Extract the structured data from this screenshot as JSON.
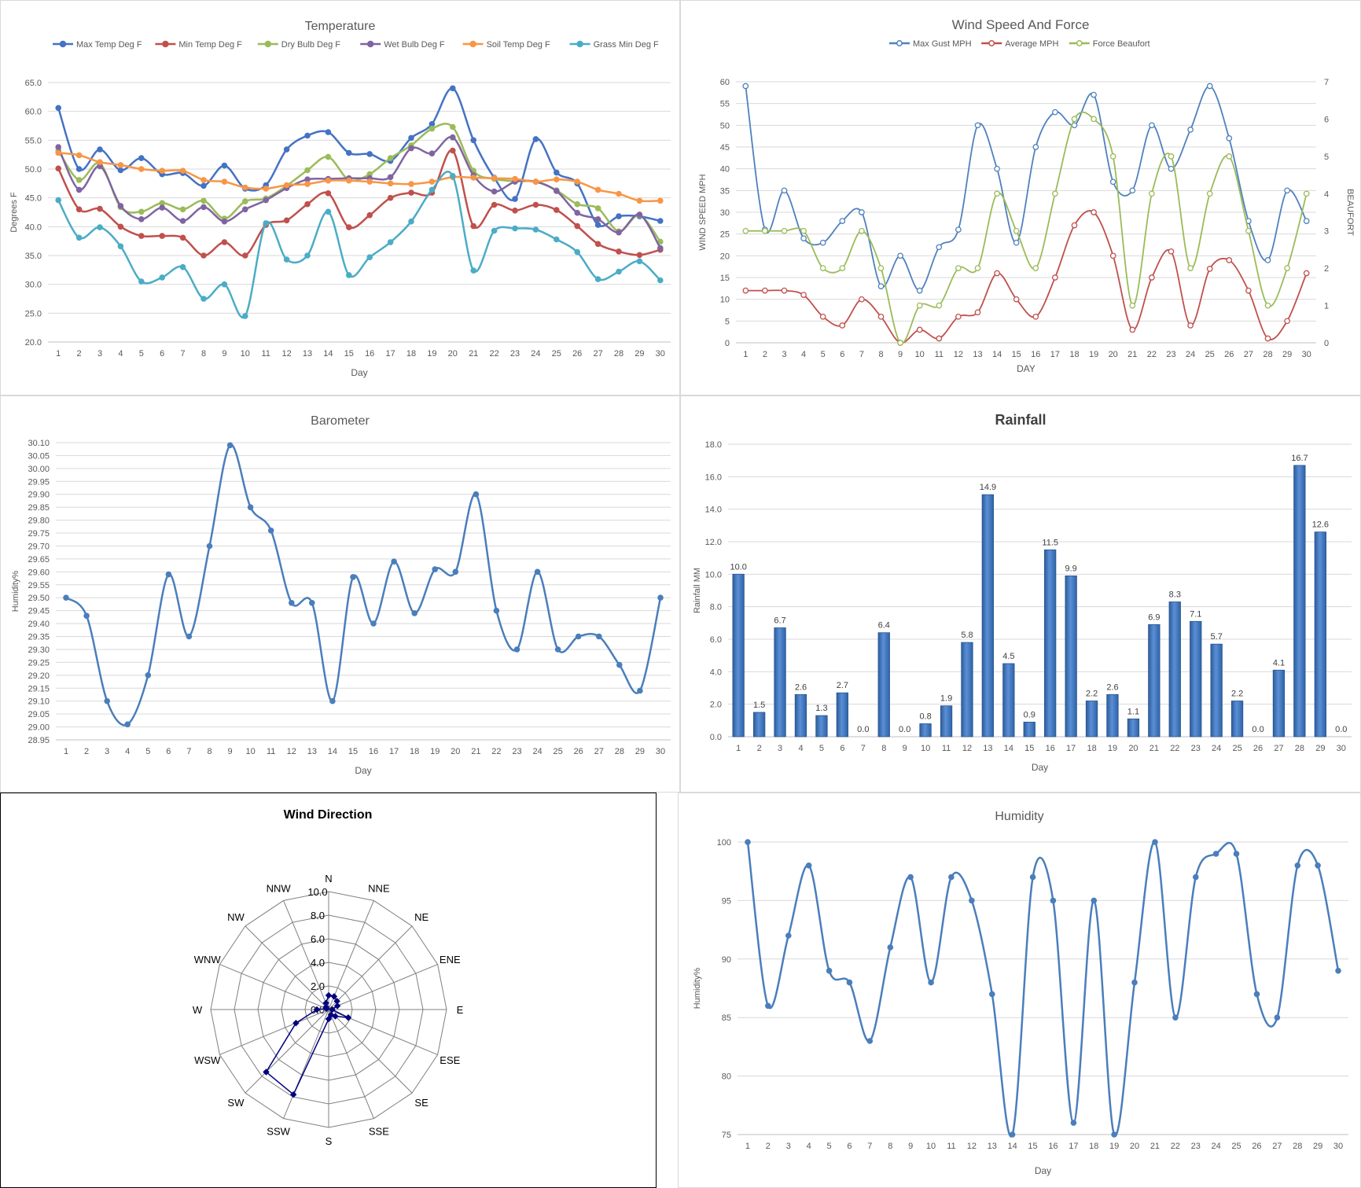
{
  "days_label": "Day",
  "chart_data": [
    {
      "id": "temperature",
      "type": "line",
      "title": "Temperature",
      "xlabel": "Day",
      "ylabel": "Degrees F",
      "x": [
        1,
        2,
        3,
        4,
        5,
        6,
        7,
        8,
        9,
        10,
        11,
        12,
        13,
        14,
        15,
        16,
        17,
        18,
        19,
        20,
        21,
        22,
        23,
        24,
        25,
        26,
        27,
        28,
        29,
        30
      ],
      "ylim": [
        20.0,
        65.0
      ],
      "yticks": [
        "20.0",
        "25.0",
        "30.0",
        "35.0",
        "40.0",
        "45.0",
        "50.0",
        "55.0",
        "60.0",
        "65.0"
      ],
      "grid": true,
      "legend": "top",
      "series": [
        {
          "name": "Max Temp Deg F",
          "color": "#4472c4",
          "values": [
            60.6,
            50.0,
            53.4,
            49.8,
            51.9,
            49.1,
            49.3,
            47.1,
            50.6,
            46.6,
            47.2,
            53.4,
            55.8,
            56.4,
            52.8,
            52.6,
            51.4,
            55.4,
            57.8,
            64.0,
            55.0,
            48.5,
            44.8,
            55.2,
            49.4,
            47.5,
            40.3,
            41.8,
            41.8,
            41.0
          ]
        },
        {
          "name": "Min Temp Deg F",
          "color": "#c0504d",
          "values": [
            50.1,
            43.0,
            43.1,
            40.0,
            38.4,
            38.4,
            38.1,
            35.0,
            37.3,
            35.0,
            40.3,
            41.1,
            43.9,
            45.8,
            39.9,
            42.0,
            45.0,
            45.9,
            45.9,
            53.2,
            40.1,
            43.8,
            42.8,
            43.8,
            42.9,
            40.1,
            37.0,
            35.7,
            35.1,
            36.0
          ]
        },
        {
          "name": "Dry Bulb Deg F",
          "color": "#9bbb59",
          "values": [
            53.2,
            48.1,
            51.0,
            43.4,
            42.6,
            44.1,
            43.0,
            44.5,
            41.4,
            44.4,
            44.9,
            47.1,
            49.8,
            52.1,
            48.1,
            49.1,
            51.9,
            54.1,
            57.0,
            57.3,
            49.7,
            48.3,
            47.9,
            47.8,
            46.3,
            43.9,
            43.2,
            39.2,
            42.0,
            37.4
          ]
        },
        {
          "name": "Wet Bulb Deg F",
          "color": "#8064a2",
          "values": [
            53.8,
            46.4,
            50.5,
            43.6,
            41.3,
            43.3,
            41.0,
            43.4,
            40.9,
            43.0,
            44.6,
            46.7,
            48.2,
            48.3,
            48.4,
            48.4,
            48.6,
            53.6,
            52.7,
            55.5,
            48.9,
            46.1,
            47.8,
            47.8,
            46.2,
            42.4,
            41.3,
            39.0,
            42.1,
            36.3
          ]
        },
        {
          "name": "Soil Temp Deg F",
          "color": "#f79646",
          "values": [
            52.8,
            52.4,
            51.2,
            50.7,
            50.0,
            49.7,
            49.7,
            48.1,
            47.8,
            46.8,
            46.6,
            47.2,
            47.4,
            48.0,
            48.0,
            47.8,
            47.5,
            47.4,
            47.8,
            48.6,
            48.5,
            48.4,
            48.3,
            47.8,
            48.2,
            47.8,
            46.4,
            45.7,
            44.5,
            44.5
          ]
        },
        {
          "name": "Grass Min Deg F",
          "color": "#4bacc6",
          "values": [
            44.6,
            38.1,
            39.9,
            36.6,
            30.5,
            31.2,
            33.0,
            27.5,
            30.0,
            24.5,
            40.6,
            34.3,
            35.0,
            42.6,
            31.6,
            34.7,
            37.3,
            40.9,
            46.4,
            48.8,
            32.4,
            39.3,
            39.7,
            39.5,
            37.8,
            35.6,
            30.9,
            32.2,
            34.0,
            30.7
          ]
        }
      ]
    },
    {
      "id": "wind",
      "type": "line",
      "title": "Wind Speed And Force",
      "xlabel": "DAY",
      "ylabel": "WIND SPEED MPH",
      "y2label": "BEAUFORT",
      "x": [
        1,
        2,
        3,
        4,
        5,
        6,
        7,
        8,
        9,
        10,
        11,
        12,
        13,
        14,
        15,
        16,
        17,
        18,
        19,
        20,
        21,
        22,
        23,
        24,
        25,
        26,
        27,
        28,
        29,
        30
      ],
      "ylim": [
        0,
        60
      ],
      "yticks": [
        "0",
        "5",
        "10",
        "15",
        "20",
        "25",
        "30",
        "35",
        "40",
        "45",
        "50",
        "55",
        "60"
      ],
      "y2lim": [
        0,
        7
      ],
      "y2ticks": [
        "0",
        "1",
        "2",
        "3",
        "4",
        "5",
        "6",
        "7"
      ],
      "grid": true,
      "legend": "top",
      "series": [
        {
          "name": "Max Gust MPH",
          "color": "#4f81bd",
          "axis": "left",
          "values": [
            59,
            26,
            35,
            24,
            23,
            28,
            30,
            13,
            20,
            12,
            22,
            26,
            50,
            40,
            23,
            45,
            53,
            50,
            57,
            37,
            35,
            50,
            40,
            49,
            59,
            47,
            28,
            19,
            35,
            28
          ]
        },
        {
          "name": "Average MPH",
          "color": "#c0504d",
          "axis": "left",
          "values": [
            12,
            12,
            12,
            11,
            6,
            4,
            10,
            6,
            0,
            3,
            1,
            6,
            7,
            16,
            10,
            6,
            15,
            27,
            30,
            20,
            3,
            15,
            21,
            4,
            17,
            19,
            12,
            1,
            5,
            16
          ]
        },
        {
          "name": "Force Beaufort",
          "color": "#9bbb59",
          "axis": "right",
          "values": [
            3,
            3,
            3,
            3,
            2,
            2,
            3,
            2,
            0,
            1,
            1,
            2,
            2,
            4,
            3,
            2,
            4,
            6,
            6,
            5,
            1,
            4,
            5,
            2,
            4,
            5,
            3,
            1,
            2,
            4
          ]
        }
      ]
    },
    {
      "id": "barometer",
      "type": "line",
      "title": "Barometer",
      "xlabel": "Day",
      "ylabel": "Humidity%",
      "x": [
        1,
        2,
        3,
        4,
        5,
        6,
        7,
        8,
        9,
        10,
        11,
        12,
        13,
        14,
        15,
        16,
        17,
        18,
        19,
        20,
        21,
        22,
        23,
        24,
        25,
        26,
        27,
        28,
        29,
        30
      ],
      "ylim": [
        28.95,
        30.1
      ],
      "yticks": [
        "28.95",
        "29.00",
        "29.05",
        "29.10",
        "29.15",
        "29.20",
        "29.25",
        "29.30",
        "29.35",
        "29.40",
        "29.45",
        "29.50",
        "29.55",
        "29.60",
        "29.65",
        "29.70",
        "29.75",
        "29.80",
        "29.85",
        "29.90",
        "29.95",
        "30.00",
        "30.05",
        "30.10"
      ],
      "grid": true,
      "series": [
        {
          "name": "",
          "color": "#4a7ebb",
          "values": [
            29.5,
            29.43,
            29.1,
            29.01,
            29.2,
            29.59,
            29.35,
            29.7,
            30.09,
            29.85,
            29.76,
            29.48,
            29.48,
            29.1,
            29.58,
            29.4,
            29.64,
            29.44,
            29.61,
            29.6,
            29.9,
            29.45,
            29.3,
            29.6,
            29.3,
            29.35,
            29.35,
            29.24,
            29.14,
            29.5
          ]
        }
      ]
    },
    {
      "id": "rainfall",
      "type": "bar",
      "title": "Rainfall",
      "xlabel": "Day",
      "ylabel": "Rainfall MM",
      "categories": [
        "1",
        "2",
        "3",
        "4",
        "5",
        "6",
        "7",
        "8",
        "9",
        "10",
        "11",
        "12",
        "13",
        "14",
        "15",
        "16",
        "17",
        "18",
        "19",
        "20",
        "21",
        "22",
        "23",
        "24",
        "25",
        "26",
        "27",
        "28",
        "29",
        "30"
      ],
      "values": [
        10.0,
        1.5,
        6.7,
        2.6,
        1.3,
        2.7,
        0.0,
        6.4,
        0.0,
        0.8,
        1.9,
        5.8,
        14.9,
        4.5,
        0.9,
        11.5,
        9.9,
        2.2,
        2.6,
        1.1,
        6.9,
        8.3,
        7.1,
        5.7,
        2.2,
        0.0,
        4.1,
        16.7,
        12.6,
        0.0
      ],
      "labels": [
        "10.0",
        "1.5",
        "6.7",
        "2.6",
        "1.3",
        "2.7",
        "0.0",
        "6.4",
        "0.0",
        "0.8",
        "1.9",
        "5.8",
        "14.9",
        "4.5",
        "0.9",
        "11.5",
        "9.9",
        "2.2",
        "2.6",
        "1.1",
        "6.9",
        "8.3",
        "7.1",
        "5.7",
        "2.2",
        "0.0",
        "4.1",
        "16.7",
        "12.6",
        "0.0"
      ],
      "ylim": [
        0,
        18
      ],
      "yticks": [
        "0.0",
        "2.0",
        "4.0",
        "6.0",
        "8.0",
        "10.0",
        "12.0",
        "14.0",
        "16.0",
        "18.0"
      ],
      "grid": true,
      "color": "#4f81bd"
    },
    {
      "id": "wind-direction",
      "type": "radar",
      "title": "Wind Direction",
      "categories": [
        "N",
        "NNE",
        "NE",
        "ENE",
        "E",
        "ESE",
        "SE",
        "SSE",
        "S",
        "SSW",
        "SW",
        "WSW",
        "W",
        "WNW",
        "NW",
        "NNW"
      ],
      "values": [
        1.2,
        1.2,
        1.0,
        0.8,
        0.3,
        1.8,
        0.8,
        0.5,
        0.8,
        7.8,
        7.5,
        3.0,
        1.0,
        0.2,
        0.3,
        0.6
      ],
      "rlim": [
        0,
        10
      ],
      "rticks": [
        "0.0",
        "2.0",
        "4.0",
        "6.0",
        "8.0",
        "10.0"
      ],
      "color": "#000080"
    },
    {
      "id": "humidity",
      "type": "line",
      "title": "Humidity",
      "xlabel": "Day",
      "ylabel": "Humidity%",
      "x": [
        1,
        2,
        3,
        4,
        5,
        6,
        7,
        8,
        9,
        10,
        11,
        12,
        13,
        14,
        15,
        16,
        17,
        18,
        19,
        20,
        21,
        22,
        23,
        24,
        25,
        26,
        27,
        28,
        29,
        30
      ],
      "ylim": [
        75,
        100
      ],
      "yticks": [
        "75",
        "80",
        "85",
        "90",
        "95",
        "100"
      ],
      "grid": true,
      "series": [
        {
          "name": "",
          "color": "#4a7ebb",
          "values": [
            100,
            86,
            92,
            98,
            89,
            88,
            83,
            91,
            97,
            88,
            97,
            95,
            87,
            75,
            97,
            95,
            76,
            95,
            75,
            88,
            100,
            85,
            97,
            99,
            99,
            87,
            85,
            98,
            98,
            89
          ]
        }
      ]
    }
  ]
}
